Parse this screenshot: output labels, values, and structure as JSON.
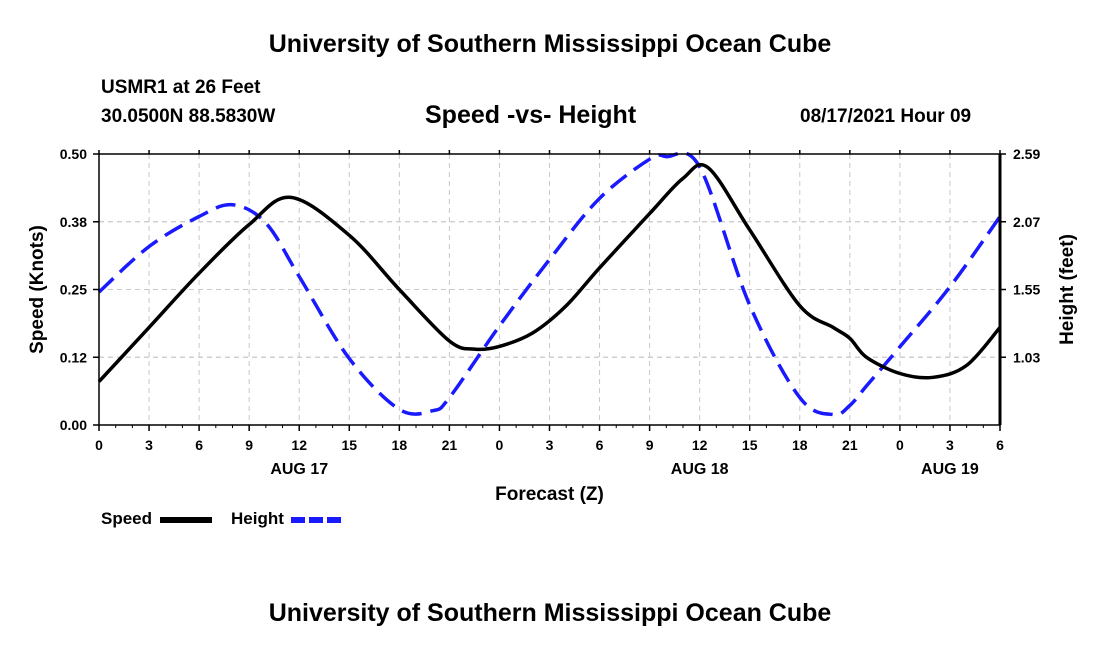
{
  "header": {
    "title": "University of Southern Mississippi Ocean Cube",
    "station": "USMR1 at 26 Feet",
    "coordinates": "30.0500N  88.5830W",
    "datetime": "08/17/2021 Hour 09"
  },
  "footer": {
    "title": "University of Southern Mississippi Ocean Cube"
  },
  "legend": {
    "speed_label": "Speed",
    "height_label": "Height"
  },
  "chart_data": {
    "type": "line",
    "title": "Speed -vs- Height",
    "xlabel": "Forecast (Z)",
    "ylabel": "Speed (Knots)",
    "y2label": "Height (feet)",
    "x_unit": "forecast hours from AUG 17 00Z",
    "xlim": [
      0,
      54
    ],
    "ylim": [
      0,
      0.5
    ],
    "y2lim": [
      0.51,
      2.59
    ],
    "grid": true,
    "x_ticks": [
      0,
      3,
      6,
      9,
      12,
      15,
      18,
      21,
      24,
      27,
      30,
      33,
      36,
      39,
      42,
      45,
      48,
      51,
      54
    ],
    "x_tick_labels": [
      "0",
      "3",
      "6",
      "9",
      "12",
      "15",
      "18",
      "21",
      "0",
      "3",
      "6",
      "9",
      "12",
      "15",
      "18",
      "21",
      "0",
      "3",
      "6"
    ],
    "date_labels": [
      {
        "x": 12,
        "label": "AUG 17"
      },
      {
        "x": 36,
        "label": "AUG 18"
      },
      {
        "x": 51,
        "label": "AUG 19"
      }
    ],
    "y_ticks": [
      0,
      0.125,
      0.25,
      0.375,
      0.5
    ],
    "y_tick_labels": [
      "0.00",
      "0.12",
      "0.25",
      "0.38",
      "0.50"
    ],
    "y2_ticks": [
      1.03,
      1.55,
      2.07,
      2.59
    ],
    "y2_tick_labels": [
      "1.03",
      "1.55",
      "2.07",
      "2.59"
    ],
    "series": [
      {
        "name": "Speed",
        "axis": "left",
        "color": "#000000",
        "style": "solid",
        "x": [
          0,
          3,
          6,
          9,
          11.5,
          15,
          18,
          21,
          22.5,
          24,
          26,
          28,
          30,
          33,
          35,
          36.5,
          39,
          42,
          44,
          45,
          46,
          48,
          50,
          52,
          54
        ],
        "values": [
          0.08,
          0.18,
          0.28,
          0.37,
          0.42,
          0.35,
          0.25,
          0.155,
          0.14,
          0.145,
          0.17,
          0.22,
          0.29,
          0.39,
          0.455,
          0.475,
          0.36,
          0.22,
          0.18,
          0.16,
          0.125,
          0.095,
          0.088,
          0.11,
          0.18
        ]
      },
      {
        "name": "Height",
        "axis": "right",
        "color": "#1a1aff",
        "style": "dashed",
        "x": [
          0,
          3,
          6,
          8,
          10,
          12,
          15,
          18,
          20,
          21,
          24,
          27,
          30,
          33,
          34,
          36,
          39,
          42,
          44,
          45,
          46,
          48,
          51,
          54
        ],
        "values": [
          1.53,
          1.88,
          2.11,
          2.2,
          2.06,
          1.65,
          1.02,
          0.63,
          0.62,
          0.72,
          1.27,
          1.78,
          2.25,
          2.55,
          2.57,
          2.49,
          1.43,
          0.72,
          0.59,
          0.66,
          0.81,
          1.11,
          1.57,
          2.11
        ]
      }
    ]
  }
}
